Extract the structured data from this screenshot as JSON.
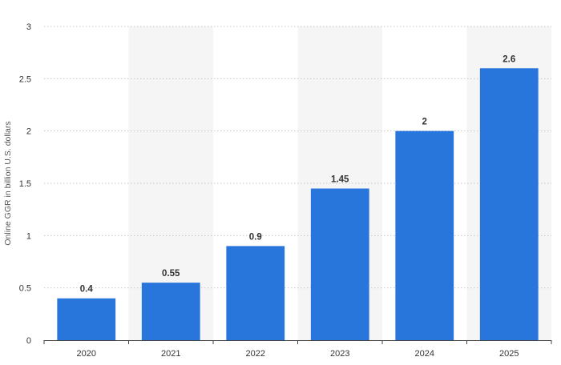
{
  "chart_data": {
    "type": "bar",
    "categories": [
      "2020",
      "2021",
      "2022",
      "2023",
      "2024",
      "2025"
    ],
    "values": [
      0.4,
      0.55,
      0.9,
      1.45,
      2,
      2.6
    ],
    "value_labels": [
      "0.4",
      "0.55",
      "0.9",
      "1.45",
      "2",
      "2.6"
    ],
    "title": "",
    "xlabel": "",
    "ylabel": "Online GGR in billion U.S. dollars",
    "ylim": [
      0,
      3
    ],
    "yticks": [
      0,
      0.5,
      1,
      1.5,
      2,
      2.5,
      3
    ],
    "ytick_labels": [
      "0",
      "0.5",
      "1",
      "1.5",
      "2",
      "2.5",
      "3"
    ],
    "grid": true,
    "bar_color": "#2875dc",
    "band_color": "#f5f5f5",
    "grid_color": "#c8c8c8",
    "axis_color": "#444444"
  }
}
